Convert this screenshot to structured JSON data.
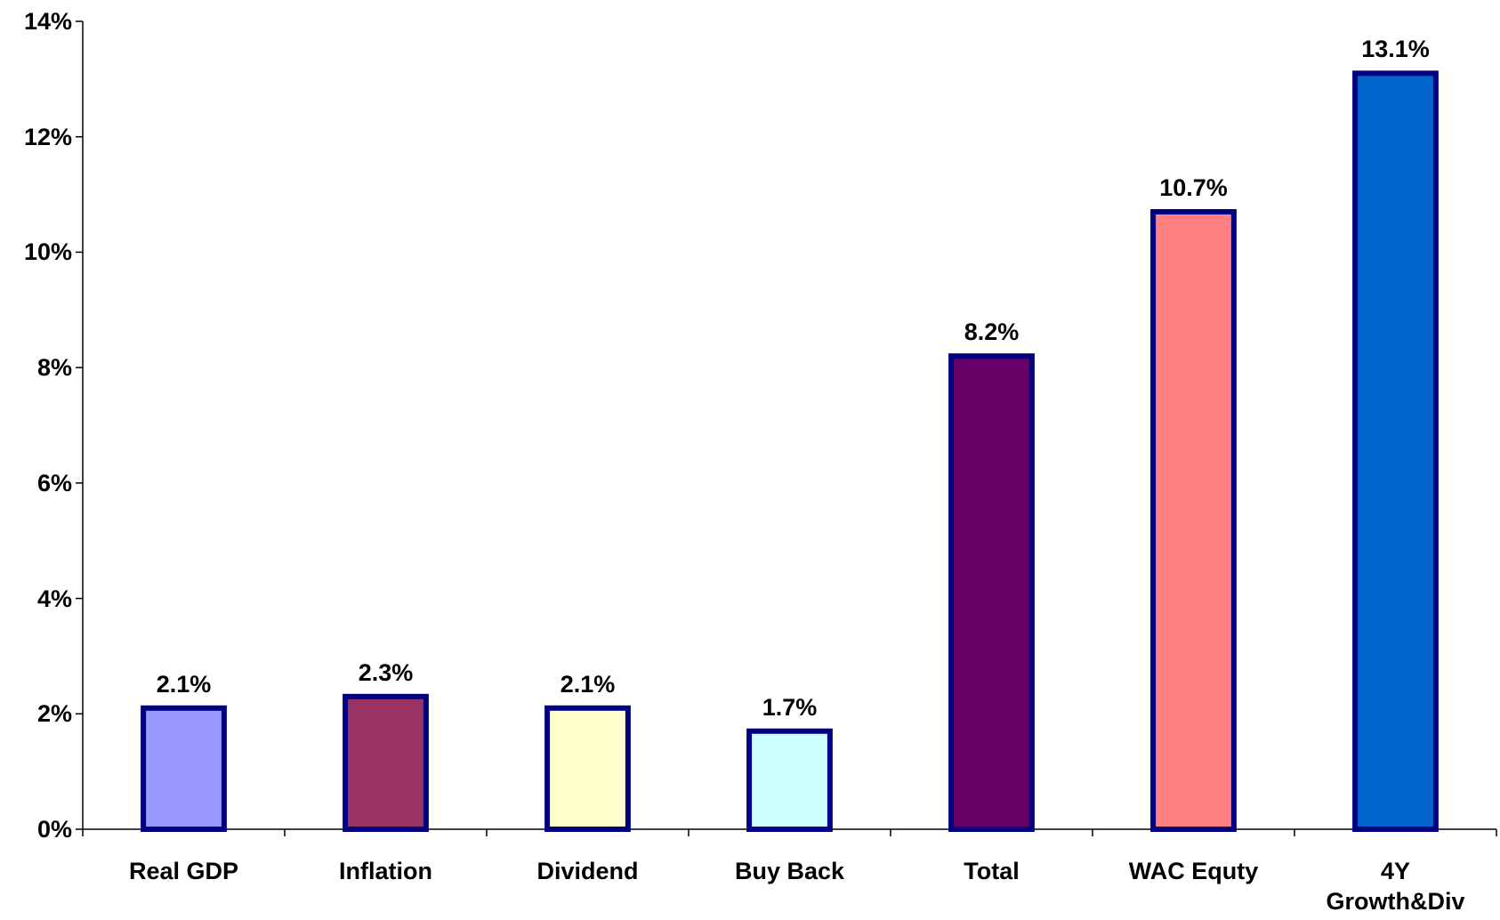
{
  "chart_data": {
    "type": "bar",
    "categories": [
      "Real GDP",
      "Inflation",
      "Dividend",
      "Buy Back",
      "Total",
      "WAC Equty",
      "4Y\nGrowth&Div"
    ],
    "values": [
      2.1,
      2.3,
      2.1,
      1.7,
      8.2,
      10.7,
      13.1
    ],
    "value_labels": [
      "2.1%",
      "2.3%",
      "2.1%",
      "1.7%",
      "8.2%",
      "10.7%",
      "13.1%"
    ],
    "colors": [
      "#9999ff",
      "#993366",
      "#ffffcc",
      "#ccffff",
      "#660066",
      "#ff8080",
      "#0066cc"
    ],
    "edge_color": "#000080",
    "ylim": [
      0,
      14
    ],
    "yticks": [
      {
        "value": 0,
        "label": "0%"
      },
      {
        "value": 2,
        "label": "2%"
      },
      {
        "value": 4,
        "label": "4%"
      },
      {
        "value": 6,
        "label": "6%"
      },
      {
        "value": 8,
        "label": "8%"
      },
      {
        "value": 10,
        "label": "10%"
      },
      {
        "value": 12,
        "label": "12%"
      },
      {
        "value": 14,
        "label": "14%"
      }
    ],
    "grid": false
  }
}
